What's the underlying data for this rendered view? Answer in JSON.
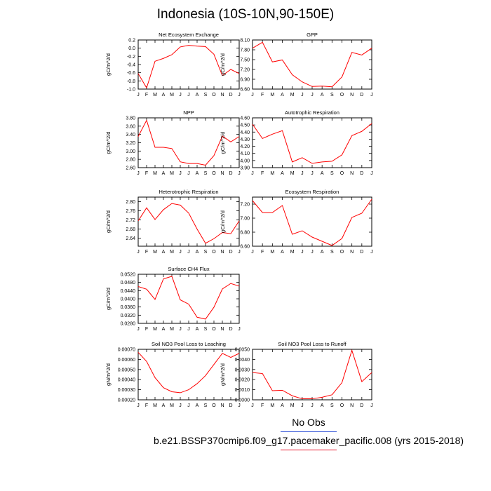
{
  "page": {
    "title": "Indonesia (10S-10N,90-150E)",
    "legend_obs": "No Obs",
    "legend_model": "b.e21.BSSP370cmip6.f09_g17.pacemaker_pacific.008 (yrs 2015-2018)",
    "colors": {
      "series": "#ff0000",
      "obs_line": "#3b5bd9",
      "model_line": "#e8142a"
    }
  },
  "chart_data": [
    {
      "type": "line",
      "title": "Net Ecosystem Exchange",
      "ylabel": "gC/m^2/d",
      "categories": [
        "J",
        "F",
        "M",
        "A",
        "M",
        "J",
        "J",
        "A",
        "S",
        "O",
        "N",
        "D",
        "J"
      ],
      "ylim": [
        -1.0,
        0.2
      ],
      "yticks": [
        "0.2",
        "0.0",
        "-0.2",
        "-0.4",
        "-0.6",
        "-0.8",
        "-1.0"
      ],
      "ytick_values": [
        0.2,
        0.0,
        -0.2,
        -0.4,
        -0.6,
        -0.8,
        -1.0
      ],
      "values": [
        -0.62,
        -0.97,
        -0.32,
        -0.25,
        -0.16,
        0.03,
        0.07,
        0.05,
        0.04,
        -0.15,
        -0.67,
        -0.52,
        -0.62
      ]
    },
    {
      "type": "line",
      "title": "GPP",
      "ylabel": "gC/m^2/d",
      "categories": [
        "J",
        "F",
        "M",
        "A",
        "M",
        "J",
        "J",
        "A",
        "S",
        "O",
        "N",
        "D",
        "J"
      ],
      "ylim": [
        6.6,
        8.1
      ],
      "yticks": [
        "8.10",
        "7.80",
        "7.50",
        "7.20",
        "6.90",
        "6.60"
      ],
      "ytick_values": [
        8.1,
        7.8,
        7.5,
        7.2,
        6.9,
        6.6
      ],
      "values": [
        7.85,
        8.03,
        7.43,
        7.49,
        7.04,
        6.82,
        6.68,
        6.69,
        6.67,
        6.97,
        7.72,
        7.64,
        7.85
      ]
    },
    {
      "type": "line",
      "title": "NPP",
      "ylabel": "gC/m^2/d",
      "categories": [
        "J",
        "F",
        "M",
        "A",
        "M",
        "J",
        "J",
        "A",
        "S",
        "O",
        "N",
        "D",
        "J"
      ],
      "ylim": [
        2.6,
        3.8
      ],
      "yticks": [
        "3.80",
        "3.60",
        "3.40",
        "3.20",
        "3.00",
        "2.80",
        "2.60"
      ],
      "ytick_values": [
        3.8,
        3.6,
        3.4,
        3.2,
        3.0,
        2.8,
        2.6
      ],
      "values": [
        3.35,
        3.74,
        3.09,
        3.09,
        3.06,
        2.74,
        2.7,
        2.7,
        2.66,
        2.89,
        3.36,
        3.22,
        3.35
      ]
    },
    {
      "type": "line",
      "title": "Autotrophic Respiration",
      "ylabel": "gC/m^2/d",
      "categories": [
        "J",
        "F",
        "M",
        "A",
        "M",
        "J",
        "J",
        "A",
        "S",
        "O",
        "N",
        "D",
        "J"
      ],
      "ylim": [
        3.9,
        4.6
      ],
      "yticks": [
        "4.60",
        "4.50",
        "4.40",
        "4.30",
        "4.20",
        "4.10",
        "4.00",
        "3.90"
      ],
      "ytick_values": [
        4.6,
        4.5,
        4.4,
        4.3,
        4.2,
        4.1,
        4.0,
        3.9
      ],
      "values": [
        4.51,
        4.31,
        4.37,
        4.42,
        3.98,
        4.04,
        3.96,
        3.98,
        3.99,
        4.08,
        4.35,
        4.41,
        4.52
      ]
    },
    {
      "type": "line",
      "title": "Heterotrophic Respiration",
      "ylabel": "gC/m^2/d",
      "categories": [
        "J",
        "F",
        "M",
        "A",
        "M",
        "J",
        "J",
        "A",
        "S",
        "O",
        "N",
        "D",
        "J"
      ],
      "ylim": [
        2.605,
        2.82
      ],
      "yticks": [
        "2.80",
        "2.76",
        "2.72",
        "2.68",
        "2.64"
      ],
      "ytick_values": [
        2.8,
        2.76,
        2.72,
        2.68,
        2.64
      ],
      "values": [
        2.716,
        2.773,
        2.722,
        2.765,
        2.792,
        2.785,
        2.75,
        2.68,
        2.618,
        2.638,
        2.665,
        2.66,
        2.716
      ]
    },
    {
      "type": "line",
      "title": "Ecosystem Respiration",
      "ylabel": "gC/m^2/d",
      "categories": [
        "J",
        "F",
        "M",
        "A",
        "M",
        "J",
        "J",
        "A",
        "S",
        "O",
        "N",
        "D",
        "J"
      ],
      "ylim": [
        6.6,
        7.3
      ],
      "yticks": [
        "7.20",
        "7.00",
        "6.80",
        "6.60"
      ],
      "ytick_values": [
        7.2,
        7.0,
        6.8,
        6.6
      ],
      "values": [
        7.25,
        7.08,
        7.08,
        7.18,
        6.77,
        6.82,
        6.73,
        6.67,
        6.61,
        6.71,
        7.01,
        7.07,
        7.27
      ]
    },
    {
      "type": "line",
      "title": "Surface CH4 Flux",
      "ylabel": "gC/m^2/d",
      "categories": [
        "J",
        "F",
        "M",
        "A",
        "M",
        "J",
        "J",
        "A",
        "S",
        "O",
        "N",
        "D",
        "J"
      ],
      "ylim": [
        0.028,
        0.052
      ],
      "yticks": [
        "0.0520",
        "0.0480",
        "0.0440",
        "0.0400",
        "0.0360",
        "0.0320",
        "0.0280"
      ],
      "ytick_values": [
        0.052,
        0.048,
        0.044,
        0.04,
        0.036,
        0.032,
        0.028
      ],
      "values": [
        0.046,
        0.0447,
        0.0397,
        0.0497,
        0.051,
        0.0395,
        0.0374,
        0.031,
        0.0301,
        0.0359,
        0.0448,
        0.0475,
        0.0462
      ]
    },
    {
      "type": "line",
      "title": "Soil NO3 Pool Loss to Leaching",
      "ylabel": "gN/m^2/d",
      "categories": [
        "J",
        "F",
        "M",
        "A",
        "M",
        "J",
        "J",
        "A",
        "S",
        "O",
        "N",
        "D",
        "J"
      ],
      "ylim": [
        0.0002,
        0.0007
      ],
      "yticks": [
        "0.00070",
        "0.00060",
        "0.00050",
        "0.00040",
        "0.00030",
        "0.00020"
      ],
      "ytick_values": [
        0.0007,
        0.0006,
        0.0005,
        0.0004,
        0.0003,
        0.0002
      ],
      "values": [
        0.00067,
        0.00058,
        0.00042,
        0.00032,
        0.00028,
        0.00027,
        0.0003,
        0.00036,
        0.00044,
        0.00055,
        0.00066,
        0.00062,
        0.00066
      ]
    },
    {
      "type": "line",
      "title": "Soil NO3 Pool Loss to Runoff",
      "ylabel": "gN/m^2/d",
      "categories": [
        "J",
        "F",
        "M",
        "A",
        "M",
        "J",
        "J",
        "A",
        "S",
        "O",
        "N",
        "D",
        "J"
      ],
      "ylim": [
        0.0,
        0.005
      ],
      "yticks": [
        "0.0050",
        "0.0040",
        "0.0030",
        "0.0020",
        "0.0010",
        "0.0000"
      ],
      "ytick_values": [
        0.005,
        0.004,
        0.003,
        0.002,
        0.001,
        0.0
      ],
      "values": [
        0.0027,
        0.0026,
        0.0009,
        0.00095,
        0.0004,
        0.0001,
        0.0001,
        0.00025,
        0.0005,
        0.0017,
        0.0049,
        0.0018,
        0.0027
      ]
    }
  ]
}
